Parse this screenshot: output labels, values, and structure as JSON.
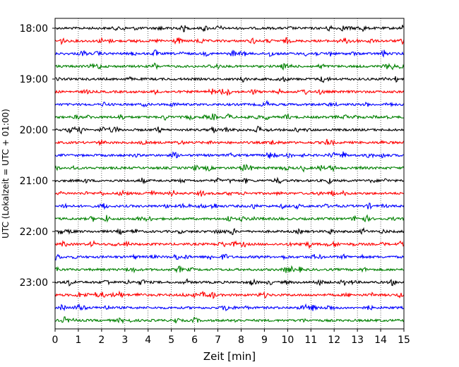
{
  "chart_data": {
    "type": "line",
    "chart_kind": "helicorder",
    "xlabel": "Zeit  [min]",
    "ylabel": "UTC (Lokalzeit = UTC + 01:00)",
    "xlim": [
      0,
      15
    ],
    "xticks": [
      "0",
      "1",
      "2",
      "3",
      "4",
      "5",
      "6",
      "7",
      "8",
      "9",
      "10",
      "11",
      "12",
      "13",
      "14",
      "15"
    ],
    "yticks": [
      "18:00",
      "19:00",
      "20:00",
      "21:00",
      "22:00",
      "23:00"
    ],
    "ytick_rows": [
      0,
      4,
      8,
      12,
      16,
      20
    ],
    "grid": "vertical dotted",
    "traces_per_hour": 4,
    "trace_interval_min": 15,
    "trace_count": 24,
    "color_cycle": [
      "#000000",
      "#ff0000",
      "#0000ff",
      "#008000"
    ]
  }
}
